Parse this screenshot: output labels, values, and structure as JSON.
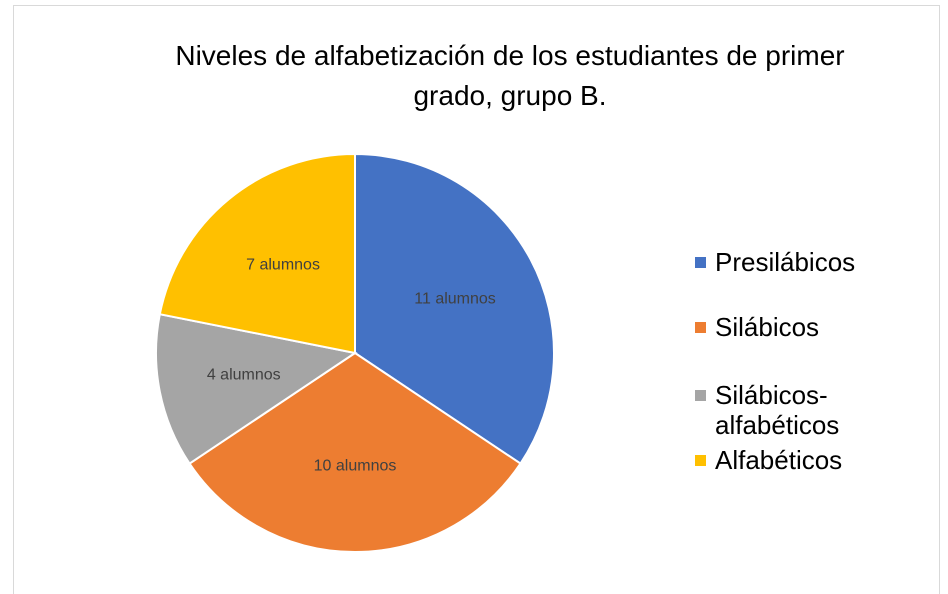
{
  "chart_data": {
    "type": "pie",
    "title": "Niveles de alfabetización de los estudiantes de primer grado, grupo B.",
    "categories": [
      "Presilábicos",
      "Silábicos",
      "Silábicos-alfabéticos",
      "Alfabéticos"
    ],
    "values": [
      11,
      10,
      4,
      7
    ],
    "value_labels": [
      "11 alumnos",
      "10 alumnos",
      "4 alumnos",
      "7 alumnos"
    ],
    "colors": [
      "#4472c4",
      "#ed7d31",
      "#a5a5a5",
      "#ffc000"
    ],
    "legend": "right"
  }
}
